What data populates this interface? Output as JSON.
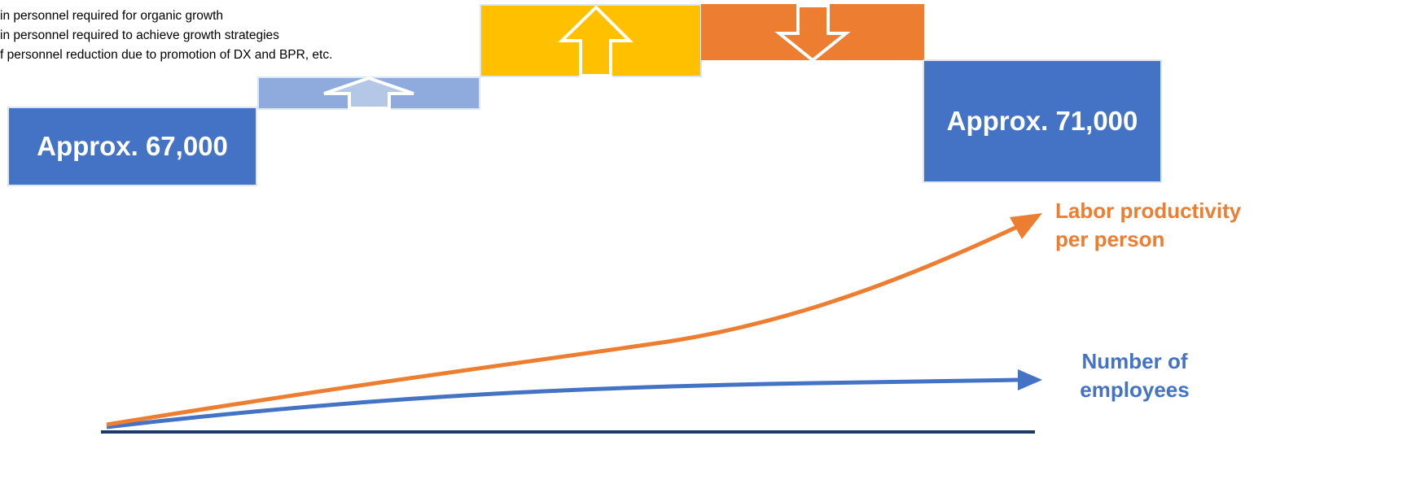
{
  "legend": [
    "in personnel required for organic growth",
    "in personnel required to achieve growth strategies",
    "f personnel reduction due to promotion of DX and BPR, etc."
  ],
  "start_block": {
    "label": "Approx. 67,000"
  },
  "end_block": {
    "label": "Approx. 71,000"
  },
  "series": {
    "productivity": {
      "label_line1": "Labor productivity",
      "label_line2": "per person"
    },
    "employees": {
      "label_line1": "Number of",
      "label_line2": "employees"
    }
  },
  "colors": {
    "blue": "#4472c4",
    "light_blue": "#8faadc",
    "gold": "#ffc000",
    "orange": "#ed7d31",
    "navy": "#1f3864"
  },
  "icons": {
    "organic_growth": "arrow-up-icon",
    "growth_strategies": "arrow-up-icon",
    "reduction": "arrow-down-icon",
    "productivity_trend": "trend-arrow-icon",
    "employees_trend": "trend-arrow-icon"
  }
}
